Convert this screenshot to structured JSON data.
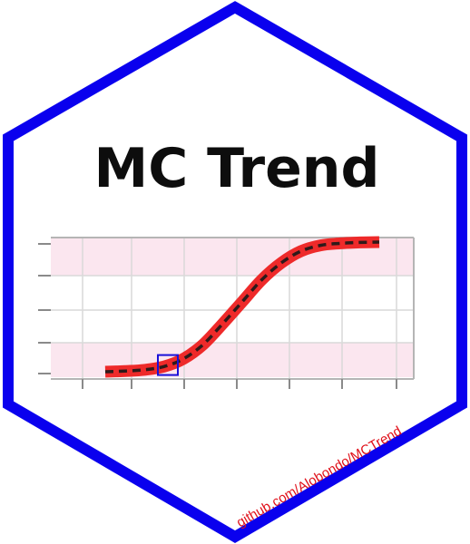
{
  "logo": {
    "title": "MC Trend",
    "url": "github.com/Alobondo/MCTrend",
    "colors": {
      "border": "#0a00ee",
      "background": "#ffffff",
      "title": "#0d0d0d",
      "url": "#e0101a",
      "band": "#fbe6ef",
      "grid": "#d9d9d9",
      "axis": "#b5b5b5",
      "curve": "#ee2a2a",
      "dashes": "#2e1a1a",
      "marker": "#1a10d8"
    }
  },
  "chart_data": {
    "type": "line",
    "title": "",
    "xlabel": "",
    "ylabel": "",
    "grid": true,
    "series": [
      {
        "x": [
          0,
          1,
          2,
          3,
          4,
          5,
          6,
          7,
          8,
          9,
          10,
          11,
          12,
          13,
          14
        ],
        "values": [
          0.0,
          0.005,
          0.015,
          0.04,
          0.1,
          0.21,
          0.37,
          0.54,
          0.71,
          0.84,
          0.93,
          0.975,
          0.99,
          0.997,
          1.0
        ]
      }
    ],
    "highlight_x": 3.2
  }
}
